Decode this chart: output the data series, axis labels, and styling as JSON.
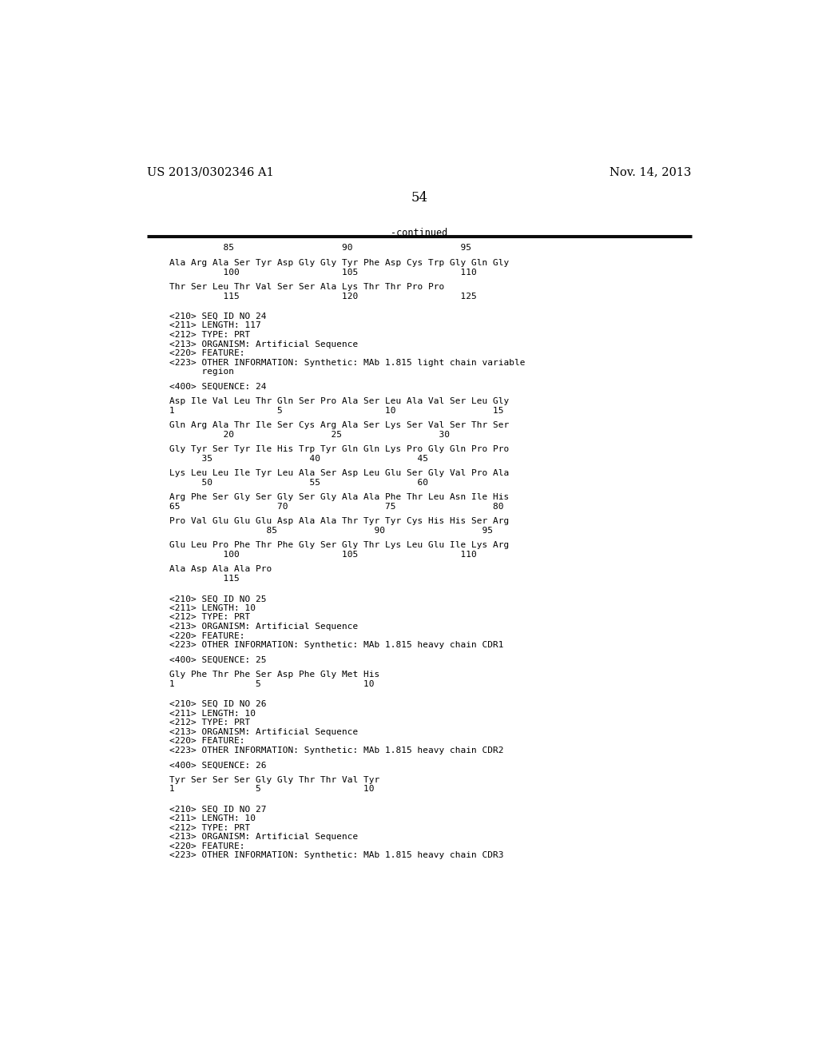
{
  "background_color": "#ffffff",
  "left_header": "US 2013/0302346 A1",
  "right_header": "Nov. 14, 2013",
  "page_number": "54",
  "continued_label": "-continued",
  "content": [
    {
      "type": "numbers",
      "text": "          85                    90                    95"
    },
    {
      "type": "blank"
    },
    {
      "type": "sequence",
      "text": "Ala Arg Ala Ser Tyr Asp Gly Gly Tyr Phe Asp Cys Trp Gly Gln Gly"
    },
    {
      "type": "numbers",
      "text": "          100                   105                   110"
    },
    {
      "type": "blank"
    },
    {
      "type": "sequence",
      "text": "Thr Ser Leu Thr Val Ser Ser Ala Lys Thr Thr Pro Pro"
    },
    {
      "type": "numbers",
      "text": "          115                   120                   125"
    },
    {
      "type": "blank"
    },
    {
      "type": "blank"
    },
    {
      "type": "meta",
      "text": "<210> SEQ ID NO 24"
    },
    {
      "type": "meta",
      "text": "<211> LENGTH: 117"
    },
    {
      "type": "meta",
      "text": "<212> TYPE: PRT"
    },
    {
      "type": "meta",
      "text": "<213> ORGANISM: Artificial Sequence"
    },
    {
      "type": "meta",
      "text": "<220> FEATURE:"
    },
    {
      "type": "meta",
      "text": "<223> OTHER INFORMATION: Synthetic: MAb 1.815 light chain variable"
    },
    {
      "type": "meta",
      "text": "      region"
    },
    {
      "type": "blank"
    },
    {
      "type": "meta",
      "text": "<400> SEQUENCE: 24"
    },
    {
      "type": "blank"
    },
    {
      "type": "sequence",
      "text": "Asp Ile Val Leu Thr Gln Ser Pro Ala Ser Leu Ala Val Ser Leu Gly"
    },
    {
      "type": "numbers",
      "text": "1                   5                   10                  15"
    },
    {
      "type": "blank"
    },
    {
      "type": "sequence",
      "text": "Gln Arg Ala Thr Ile Ser Cys Arg Ala Ser Lys Ser Val Ser Thr Ser"
    },
    {
      "type": "numbers",
      "text": "          20                  25                  30"
    },
    {
      "type": "blank"
    },
    {
      "type": "sequence",
      "text": "Gly Tyr Ser Tyr Ile His Trp Tyr Gln Gln Lys Pro Gly Gln Pro Pro"
    },
    {
      "type": "numbers",
      "text": "      35                  40                  45"
    },
    {
      "type": "blank"
    },
    {
      "type": "sequence",
      "text": "Lys Leu Leu Ile Tyr Leu Ala Ser Asp Leu Glu Ser Gly Val Pro Ala"
    },
    {
      "type": "numbers",
      "text": "      50                  55                  60"
    },
    {
      "type": "blank"
    },
    {
      "type": "sequence",
      "text": "Arg Phe Ser Gly Ser Gly Ser Gly Ala Ala Phe Thr Leu Asn Ile His"
    },
    {
      "type": "numbers",
      "text": "65                  70                  75                  80"
    },
    {
      "type": "blank"
    },
    {
      "type": "sequence",
      "text": "Pro Val Glu Glu Glu Asp Ala Ala Thr Tyr Tyr Cys His His Ser Arg"
    },
    {
      "type": "numbers",
      "text": "                  85                  90                  95"
    },
    {
      "type": "blank"
    },
    {
      "type": "sequence",
      "text": "Glu Leu Pro Phe Thr Phe Gly Ser Gly Thr Lys Leu Glu Ile Lys Arg"
    },
    {
      "type": "numbers",
      "text": "          100                   105                   110"
    },
    {
      "type": "blank"
    },
    {
      "type": "sequence",
      "text": "Ala Asp Ala Ala Pro"
    },
    {
      "type": "numbers",
      "text": "          115"
    },
    {
      "type": "blank"
    },
    {
      "type": "blank"
    },
    {
      "type": "meta",
      "text": "<210> SEQ ID NO 25"
    },
    {
      "type": "meta",
      "text": "<211> LENGTH: 10"
    },
    {
      "type": "meta",
      "text": "<212> TYPE: PRT"
    },
    {
      "type": "meta",
      "text": "<213> ORGANISM: Artificial Sequence"
    },
    {
      "type": "meta",
      "text": "<220> FEATURE:"
    },
    {
      "type": "meta",
      "text": "<223> OTHER INFORMATION: Synthetic: MAb 1.815 heavy chain CDR1"
    },
    {
      "type": "blank"
    },
    {
      "type": "meta",
      "text": "<400> SEQUENCE: 25"
    },
    {
      "type": "blank"
    },
    {
      "type": "sequence",
      "text": "Gly Phe Thr Phe Ser Asp Phe Gly Met His"
    },
    {
      "type": "numbers",
      "text": "1               5                   10"
    },
    {
      "type": "blank"
    },
    {
      "type": "blank"
    },
    {
      "type": "meta",
      "text": "<210> SEQ ID NO 26"
    },
    {
      "type": "meta",
      "text": "<211> LENGTH: 10"
    },
    {
      "type": "meta",
      "text": "<212> TYPE: PRT"
    },
    {
      "type": "meta",
      "text": "<213> ORGANISM: Artificial Sequence"
    },
    {
      "type": "meta",
      "text": "<220> FEATURE:"
    },
    {
      "type": "meta",
      "text": "<223> OTHER INFORMATION: Synthetic: MAb 1.815 heavy chain CDR2"
    },
    {
      "type": "blank"
    },
    {
      "type": "meta",
      "text": "<400> SEQUENCE: 26"
    },
    {
      "type": "blank"
    },
    {
      "type": "sequence",
      "text": "Tyr Ser Ser Ser Gly Gly Thr Thr Val Tyr"
    },
    {
      "type": "numbers",
      "text": "1               5                   10"
    },
    {
      "type": "blank"
    },
    {
      "type": "blank"
    },
    {
      "type": "meta",
      "text": "<210> SEQ ID NO 27"
    },
    {
      "type": "meta",
      "text": "<211> LENGTH: 10"
    },
    {
      "type": "meta",
      "text": "<212> TYPE: PRT"
    },
    {
      "type": "meta",
      "text": "<213> ORGANISM: Artificial Sequence"
    },
    {
      "type": "meta",
      "text": "<220> FEATURE:"
    },
    {
      "type": "meta",
      "text": "<223> OTHER INFORMATION: Synthetic: MAb 1.815 heavy chain CDR3"
    }
  ]
}
